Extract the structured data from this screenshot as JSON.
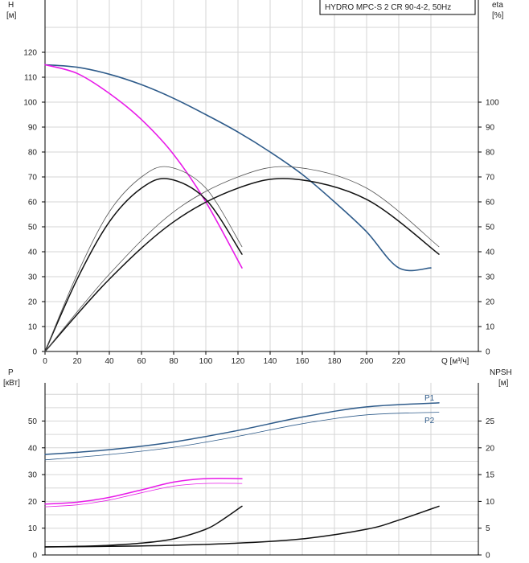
{
  "title": "HYDRO MPC-S 2 CR 90-4-2, 50Hz",
  "colors": {
    "grid": "#d6d6d6",
    "axis": "#000000",
    "text": "#222222",
    "system_curve": "#2e5b8a",
    "single_pump": "#e81ae8",
    "efficiency": "#111111",
    "efficiency_thin": "#555555",
    "npsh": "#111111"
  },
  "top": {
    "left_axis_label_1": "H",
    "left_axis_label_2": "[м]",
    "right_axis_label_1": "eta",
    "right_axis_label_2": "[%]",
    "x_unit_label": "Q [м³/ч]",
    "x_ticks": [
      0,
      20,
      40,
      60,
      80,
      100,
      120,
      140,
      160,
      180,
      200,
      220
    ],
    "y_left_ticks": [
      0,
      10,
      20,
      30,
      40,
      50,
      60,
      70,
      80,
      90,
      100,
      110,
      120
    ],
    "y_right_ticks": [
      0,
      10,
      20,
      30,
      40,
      50,
      60,
      70,
      80,
      90,
      100
    ]
  },
  "bottom": {
    "left_axis_label_1": "P",
    "left_axis_label_2": "[кВт]",
    "right_axis_label_1": "NPSH",
    "right_axis_label_2": "[м]",
    "y_left_ticks": [
      0,
      10,
      20,
      30,
      40,
      50
    ],
    "y_right_ticks": [
      0,
      5,
      10,
      15,
      20,
      25
    ]
  },
  "chart_data": [
    {
      "type": "line",
      "title": "HYDRO MPC-S 2 CR 90-4-2, 50Hz",
      "xlabel": "Q [м³/ч]",
      "ylabel": "H [м]",
      "y2label": "eta [%]",
      "xlim": [
        0,
        240
      ],
      "ylim": [
        0,
        130
      ],
      "y2lim": [
        0,
        130
      ],
      "grid": true,
      "series": [
        {
          "id": "H_2pumps",
          "axis": "left",
          "color": "#2e5b8a",
          "width": 1.6,
          "x": [
            0,
            20,
            40,
            60,
            80,
            100,
            120,
            140,
            160,
            180,
            200,
            220,
            240
          ],
          "y": [
            115,
            114,
            111.2,
            107,
            101.5,
            95,
            88,
            80,
            71,
            60,
            48,
            33.5,
            33.5
          ]
        },
        {
          "id": "H_1pump",
          "axis": "left",
          "color": "#e81ae8",
          "width": 1.6,
          "x": [
            0,
            20,
            40,
            60,
            80,
            100,
            122.5
          ],
          "y": [
            115,
            111.5,
            103.5,
            93,
            79,
            60,
            33.5
          ]
        },
        {
          "id": "eta_1pump",
          "axis": "right",
          "color": "#111111",
          "width": 1.5,
          "x": [
            0,
            20,
            40,
            60,
            77,
            100,
            122.5
          ],
          "y": [
            0,
            29,
            52,
            65.5,
            69.2,
            61,
            39
          ]
        },
        {
          "id": "eta_1pump_thin",
          "axis": "right",
          "color": "#555555",
          "width": 0.8,
          "x": [
            0,
            20,
            40,
            60,
            77,
            100,
            122.5
          ],
          "y": [
            0,
            31,
            56,
            70,
            74,
            65.5,
            42
          ]
        },
        {
          "id": "eta_2pumps",
          "axis": "right",
          "color": "#111111",
          "width": 1.5,
          "x": [
            0,
            40,
            80,
            120,
            154,
            200,
            245
          ],
          "y": [
            0,
            29,
            52,
            65.5,
            69.2,
            61,
            39
          ]
        },
        {
          "id": "eta_2pumps_thin",
          "axis": "right",
          "color": "#555555",
          "width": 0.8,
          "x": [
            0,
            40,
            80,
            120,
            154,
            200,
            245
          ],
          "y": [
            0,
            31,
            56,
            70,
            74,
            65.5,
            42
          ]
        }
      ]
    },
    {
      "type": "line",
      "xlabel": "Q [м³/ч]",
      "ylabel": "P [кВт]",
      "y2label": "NPSH [м]",
      "xlim": [
        0,
        240
      ],
      "ylim": [
        0,
        60
      ],
      "y2lim": [
        0,
        30
      ],
      "grid": true,
      "series": [
        {
          "id": "P1_2pumps",
          "name": "P1",
          "axis": "left",
          "color": "#2e5b8a",
          "width": 1.5,
          "x": [
            0,
            40,
            80,
            120,
            160,
            200,
            245
          ],
          "y": [
            37.5,
            39.3,
            42.2,
            46.5,
            51.5,
            55.3,
            56.8
          ]
        },
        {
          "id": "P2_2pumps",
          "name": "P2",
          "axis": "left",
          "color": "#2e5b8a",
          "width": 0.8,
          "x": [
            0,
            40,
            80,
            120,
            160,
            200,
            245
          ],
          "y": [
            35.5,
            37.5,
            40.2,
            44.3,
            49,
            52.3,
            53.3
          ]
        },
        {
          "id": "P1_1pump",
          "axis": "left",
          "color": "#e81ae8",
          "width": 1.5,
          "x": [
            0,
            20,
            40,
            60,
            80,
            100,
            122.5
          ],
          "y": [
            19,
            19.7,
            21.5,
            24.3,
            27.2,
            28.5,
            28.5
          ]
        },
        {
          "id": "P2_1pump",
          "axis": "left",
          "color": "#e81ae8",
          "width": 0.8,
          "x": [
            0,
            20,
            40,
            60,
            80,
            100,
            122.5
          ],
          "y": [
            18,
            18.7,
            20.5,
            23.2,
            25.7,
            26.7,
            26.7
          ]
        },
        {
          "id": "NPSH_1pump",
          "axis": "right",
          "color": "#111111",
          "width": 1.5,
          "x": [
            0,
            20,
            40,
            60,
            80,
            100,
            110,
            122.5
          ],
          "y": [
            1.5,
            1.6,
            1.8,
            2.2,
            3.0,
            4.8,
            6.5,
            9.1
          ]
        },
        {
          "id": "NPSH_2pumps",
          "axis": "right",
          "color": "#111111",
          "width": 1.5,
          "x": [
            0,
            40,
            80,
            120,
            160,
            200,
            220,
            245
          ],
          "y": [
            1.5,
            1.6,
            1.8,
            2.2,
            3.0,
            4.8,
            6.5,
            9.1
          ]
        }
      ]
    }
  ]
}
